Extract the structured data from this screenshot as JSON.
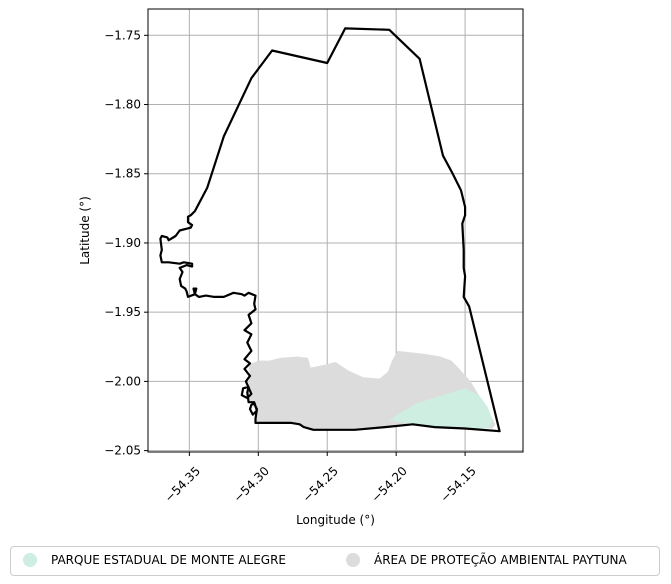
{
  "chart_data": {
    "type": "map",
    "xlabel": "Longitude (°)",
    "ylabel": "Latitude (°)",
    "xlim": [
      -54.38,
      -54.108
    ],
    "ylim": [
      -2.051,
      -1.731
    ],
    "xticks": [
      -54.35,
      -54.3,
      -54.25,
      -54.2,
      -54.15
    ],
    "xtick_labels": [
      "−54.35",
      "−54.30",
      "−54.25",
      "−54.20",
      "−54.15"
    ],
    "yticks": [
      -1.75,
      -1.8,
      -1.85,
      -1.9,
      -1.95,
      -2.0,
      -2.05
    ],
    "ytick_labels": [
      "−1.75",
      "−1.80",
      "−1.85",
      "−1.90",
      "−1.95",
      "−2.00",
      "−2.05"
    ],
    "grid": true,
    "legend_position": "bottom",
    "colors": {
      "boundary": "#000000",
      "apa_fill": "#dcdcdc",
      "park_fill": "#cdeee0",
      "grid": "#b0b0b0"
    },
    "layers": [
      {
        "name": "PARQUE ESTADUAL DE MONTE ALEGRE",
        "color": "#cdeee0"
      },
      {
        "name": "ÁREA DE PROTEÇÃO AMBIENTAL PAYTUNA",
        "color": "#dcdcdc"
      }
    ],
    "boundary": [
      [
        -54.349,
        -1.88
      ],
      [
        -54.346,
        -1.877
      ],
      [
        -54.337,
        -1.86
      ],
      [
        -54.325,
        -1.823
      ],
      [
        -54.305,
        -1.781
      ],
      [
        -54.29,
        -1.761
      ],
      [
        -54.25,
        -1.77
      ],
      [
        -54.237,
        -1.745
      ],
      [
        -54.205,
        -1.746
      ],
      [
        -54.183,
        -1.767
      ],
      [
        -54.166,
        -1.837
      ],
      [
        -54.159,
        -1.85
      ],
      [
        -54.153,
        -1.862
      ],
      [
        -54.15,
        -1.874
      ],
      [
        -54.15,
        -1.88
      ],
      [
        -54.152,
        -1.886
      ],
      [
        -54.151,
        -1.905
      ],
      [
        -54.151,
        -1.918
      ],
      [
        -54.15,
        -1.924
      ],
      [
        -54.151,
        -1.939
      ],
      [
        -54.147,
        -1.946
      ],
      [
        -54.125,
        -2.036
      ],
      [
        -54.15,
        -2.034
      ],
      [
        -54.172,
        -2.033
      ],
      [
        -54.188,
        -2.031
      ],
      [
        -54.208,
        -2.033
      ],
      [
        -54.23,
        -2.035
      ],
      [
        -54.26,
        -2.035
      ],
      [
        -54.267,
        -2.033
      ],
      [
        -54.27,
        -2.031
      ],
      [
        -54.276,
        -2.03
      ],
      [
        -54.29,
        -2.03
      ],
      [
        -54.298,
        -2.03
      ],
      [
        -54.302,
        -2.03
      ],
      [
        -54.302,
        -2.027
      ],
      [
        -54.301,
        -2.02
      ],
      [
        -54.303,
        -2.016
      ],
      [
        -54.305,
        -2.017
      ],
      [
        -54.306,
        -2.02
      ],
      [
        -54.304,
        -2.024
      ],
      [
        -54.301,
        -2.021
      ],
      [
        -54.303,
        -2.015
      ],
      [
        -54.307,
        -2.015
      ],
      [
        -54.308,
        -2.008
      ],
      [
        -54.307,
        -2.004
      ],
      [
        -54.311,
        -2.005
      ],
      [
        -54.312,
        -2.01
      ],
      [
        -54.308,
        -2.012
      ],
      [
        -54.305,
        -2.009
      ],
      [
        -54.309,
        -2.0
      ],
      [
        -54.306,
        -1.996
      ],
      [
        -54.31,
        -1.991
      ],
      [
        -54.306,
        -1.987
      ],
      [
        -54.31,
        -1.984
      ],
      [
        -54.305,
        -1.978
      ],
      [
        -54.308,
        -1.972
      ],
      [
        -54.305,
        -1.966
      ],
      [
        -54.31,
        -1.963
      ],
      [
        -54.305,
        -1.958
      ],
      [
        -54.307,
        -1.952
      ],
      [
        -54.302,
        -1.948
      ],
      [
        -54.303,
        -1.944
      ],
      [
        -54.302,
        -1.938
      ],
      [
        -54.307,
        -1.936
      ],
      [
        -54.31,
        -1.938
      ],
      [
        -54.312,
        -1.937
      ],
      [
        -54.318,
        -1.936
      ],
      [
        -54.325,
        -1.939
      ],
      [
        -54.332,
        -1.939
      ],
      [
        -54.338,
        -1.938
      ],
      [
        -54.343,
        -1.939
      ],
      [
        -54.346,
        -1.937
      ],
      [
        -54.345,
        -1.933
      ],
      [
        -54.347,
        -1.933
      ],
      [
        -54.346,
        -1.937
      ],
      [
        -54.351,
        -1.939
      ],
      [
        -54.352,
        -1.935
      ],
      [
        -54.353,
        -1.933
      ],
      [
        -54.356,
        -1.931
      ],
      [
        -54.357,
        -1.926
      ],
      [
        -54.355,
        -1.921
      ],
      [
        -54.357,
        -1.918
      ],
      [
        -54.352,
        -1.916
      ],
      [
        -54.348,
        -1.917
      ],
      [
        -54.348,
        -1.915
      ],
      [
        -54.354,
        -1.914
      ],
      [
        -54.357,
        -1.915
      ],
      [
        -54.365,
        -1.914
      ],
      [
        -54.37,
        -1.914
      ],
      [
        -54.371,
        -1.909
      ],
      [
        -54.37,
        -1.905
      ],
      [
        -54.371,
        -1.897
      ],
      [
        -54.37,
        -1.895
      ],
      [
        -54.366,
        -1.896
      ],
      [
        -54.365,
        -1.898
      ],
      [
        -54.36,
        -1.895
      ],
      [
        -54.357,
        -1.891
      ],
      [
        -54.353,
        -1.89
      ],
      [
        -54.349,
        -1.889
      ],
      [
        -54.348,
        -1.887
      ],
      [
        -54.351,
        -1.885
      ],
      [
        -54.351,
        -1.881
      ],
      [
        -54.349,
        -1.88
      ]
    ],
    "apa_polygon": [
      [
        -54.307,
        -1.988
      ],
      [
        -54.3,
        -1.985
      ],
      [
        -54.292,
        -1.985
      ],
      [
        -54.284,
        -1.983
      ],
      [
        -54.272,
        -1.982
      ],
      [
        -54.264,
        -1.983
      ],
      [
        -54.262,
        -1.99
      ],
      [
        -54.252,
        -1.988
      ],
      [
        -54.244,
        -1.986
      ],
      [
        -54.235,
        -1.992
      ],
      [
        -54.224,
        -1.997
      ],
      [
        -54.212,
        -1.998
      ],
      [
        -54.206,
        -1.993
      ],
      [
        -54.203,
        -1.985
      ],
      [
        -54.199,
        -1.978
      ],
      [
        -54.19,
        -1.979
      ],
      [
        -54.18,
        -1.98
      ],
      [
        -54.168,
        -1.982
      ],
      [
        -54.16,
        -1.985
      ],
      [
        -54.155,
        -1.99
      ],
      [
        -54.146,
        -2.0
      ],
      [
        -54.14,
        -2.01
      ],
      [
        -54.134,
        -2.02
      ],
      [
        -54.128,
        -2.031
      ],
      [
        -54.13,
        -2.034
      ],
      [
        -54.15,
        -2.034
      ],
      [
        -54.172,
        -2.033
      ],
      [
        -54.188,
        -2.031
      ],
      [
        -54.208,
        -2.033
      ],
      [
        -54.23,
        -2.035
      ],
      [
        -54.26,
        -2.035
      ],
      [
        -54.27,
        -2.031
      ],
      [
        -54.29,
        -2.03
      ],
      [
        -54.302,
        -2.03
      ],
      [
        -54.302,
        -2.02
      ],
      [
        -54.306,
        -2.015
      ],
      [
        -54.308,
        -2.005
      ],
      [
        -54.306,
        -1.996
      ],
      [
        -54.307,
        -1.988
      ]
    ],
    "park_polygon": [
      [
        -54.205,
        -2.028
      ],
      [
        -54.196,
        -2.022
      ],
      [
        -54.185,
        -2.016
      ],
      [
        -54.173,
        -2.012
      ],
      [
        -54.16,
        -2.008
      ],
      [
        -54.15,
        -2.005
      ],
      [
        -54.14,
        -2.01
      ],
      [
        -54.134,
        -2.018
      ],
      [
        -54.13,
        -2.028
      ],
      [
        -54.133,
        -2.034
      ],
      [
        -54.15,
        -2.034
      ],
      [
        -54.172,
        -2.033
      ],
      [
        -54.188,
        -2.031
      ],
      [
        -54.205,
        -2.028
      ]
    ]
  }
}
